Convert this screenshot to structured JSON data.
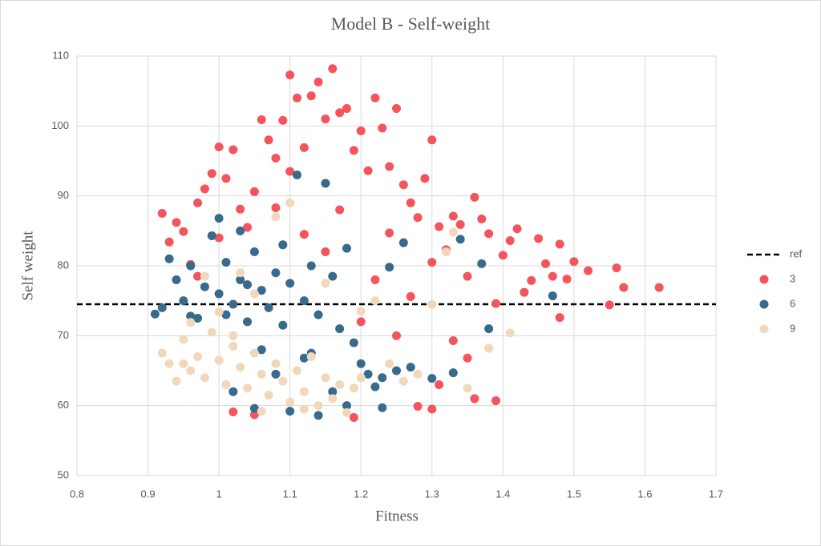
{
  "chart_data": {
    "type": "scatter",
    "title": "Model B - Self-weight",
    "x_label": "Fitness",
    "y_label": "Self weight",
    "xlim": [
      0.8,
      1.7
    ],
    "xticks": [
      0.8,
      0.9,
      1,
      1.1,
      1.2,
      1.3,
      1.4,
      1.5,
      1.6,
      1.7
    ],
    "ylim": [
      50,
      110
    ],
    "yticks": [
      50,
      60,
      70,
      80,
      90,
      100,
      110
    ],
    "grid": true,
    "legend": "right",
    "series": [
      {
        "name": "ref",
        "color": "#000000",
        "dashed": true,
        "x": [
          0.8,
          1.7
        ],
        "values": [
          74.5,
          74.5
        ]
      },
      {
        "name": "3",
        "color": "#f4545c",
        "x": [
          0.92,
          0.93,
          0.94,
          0.95,
          0.96,
          0.97,
          0.98,
          0.99,
          1.0,
          1.01,
          1.02,
          1.03,
          1.04,
          1.05,
          1.06,
          1.07,
          1.08,
          1.09,
          1.1,
          1.11,
          1.12,
          1.13,
          1.14,
          1.15,
          1.16,
          1.17,
          1.18,
          1.19,
          1.2,
          1.21,
          1.22,
          1.23,
          1.24,
          1.25,
          1.26,
          1.27,
          1.28,
          1.29,
          1.3,
          1.31,
          1.32,
          1.33,
          1.34,
          1.35,
          1.36,
          1.37,
          1.38,
          1.39,
          1.4,
          1.41,
          1.42,
          1.43,
          1.44,
          1.45,
          1.46,
          1.47,
          1.48,
          1.49,
          1.5,
          1.52,
          1.55,
          1.56,
          1.57,
          1.62,
          1.48,
          1.39,
          1.36,
          1.3,
          1.28,
          1.19,
          1.05,
          1.02,
          1.33,
          1.25,
          1.22,
          1.15,
          1.12,
          1.08,
          1.0,
          0.97,
          1.2,
          1.27,
          1.35,
          1.31,
          1.17,
          1.1,
          1.24,
          1.3
        ],
        "values": [
          87.5,
          83.4,
          86.2,
          84.9,
          80.2,
          89,
          91,
          93.2,
          97,
          92.5,
          96.6,
          88.1,
          85.5,
          90.6,
          100.9,
          98,
          95.4,
          100.8,
          107.3,
          104,
          96.9,
          104.3,
          106.3,
          101,
          108.2,
          101.9,
          102.5,
          96.5,
          99.3,
          93.6,
          104,
          99.7,
          94.2,
          102.5,
          91.6,
          89,
          86.9,
          92.5,
          98,
          85.6,
          82.3,
          87.1,
          85.9,
          78.5,
          89.8,
          86.7,
          84.6,
          74.6,
          81.5,
          83.6,
          85.3,
          76.2,
          77.9,
          83.9,
          80.3,
          78.5,
          83.1,
          78.1,
          80.6,
          79.3,
          74.4,
          79.7,
          76.9,
          76.9,
          72.6,
          60.7,
          61,
          59.5,
          59.9,
          58.3,
          58.7,
          59.1,
          69.3,
          70,
          78,
          82,
          84.5,
          88.3,
          84,
          78.5,
          72,
          75.6,
          66.8,
          63,
          88,
          93.5,
          84.7,
          80.5
        ]
      },
      {
        "name": "6",
        "color": "#376a8c",
        "x": [
          0.91,
          0.92,
          0.93,
          0.94,
          0.95,
          0.96,
          0.97,
          0.98,
          0.99,
          1.0,
          1.01,
          1.02,
          1.03,
          1.04,
          1.05,
          1.06,
          1.07,
          1.08,
          1.09,
          1.1,
          1.11,
          1.12,
          1.13,
          1.14,
          1.15,
          1.16,
          1.17,
          1.18,
          1.19,
          1.2,
          1.21,
          1.22,
          1.23,
          1.24,
          1.25,
          1.26,
          1.27,
          1.3,
          1.33,
          1.34,
          1.37,
          1.38,
          1.47,
          1.02,
          1.05,
          1.1,
          1.14,
          1.08,
          1.12,
          1.0,
          1.03,
          1.06,
          1.16,
          0.96,
          1.09,
          1.13,
          1.18,
          1.23,
          1.01,
          1.04
        ],
        "values": [
          73.1,
          74,
          81,
          78,
          75,
          80,
          72.5,
          77,
          84.3,
          76,
          80.5,
          74.5,
          78,
          72,
          82,
          76.5,
          74,
          79,
          71.5,
          77.5,
          93,
          75,
          80,
          73,
          91.8,
          78.5,
          71,
          82.5,
          69,
          66,
          64.5,
          62.7,
          64,
          79.8,
          65,
          83.3,
          65.5,
          63.9,
          64.7,
          83.8,
          80.3,
          71,
          75.7,
          62,
          59.6,
          59.2,
          58.6,
          64.5,
          66.8,
          86.8,
          85,
          68,
          62,
          72.8,
          83,
          67.5,
          60,
          59.7,
          73,
          77.3
        ]
      },
      {
        "name": "9",
        "color": "#f2d8bb",
        "x": [
          0.92,
          0.93,
          0.94,
          0.95,
          0.96,
          0.97,
          0.98,
          0.99,
          1.0,
          1.01,
          1.02,
          1.03,
          1.04,
          1.05,
          1.06,
          1.07,
          1.08,
          1.09,
          1.1,
          1.11,
          1.12,
          1.13,
          1.14,
          1.15,
          1.16,
          1.17,
          1.18,
          1.19,
          1.2,
          1.22,
          1.24,
          1.26,
          1.28,
          1.3,
          1.32,
          1.35,
          1.38,
          1.41,
          1.33,
          1.1,
          1.08,
          1.03,
          0.98,
          0.96,
          1.0,
          1.05,
          1.15,
          1.2,
          0.95,
          1.02,
          1.06,
          1.12
        ],
        "values": [
          67.5,
          66,
          63.5,
          69.5,
          65,
          67,
          64,
          70.5,
          66.5,
          63,
          68.5,
          65.5,
          62.5,
          67.5,
          64.5,
          61.5,
          66,
          63.5,
          60.5,
          65,
          62,
          67,
          60,
          64,
          61,
          63,
          59,
          62.5,
          64,
          75,
          66,
          63.5,
          64.5,
          74.5,
          82,
          62.5,
          68.2,
          70.4,
          84.8,
          89,
          87,
          79,
          78.5,
          71.9,
          73.4,
          76,
          77.5,
          73.5,
          66,
          70,
          59.2,
          59.5
        ]
      }
    ]
  }
}
